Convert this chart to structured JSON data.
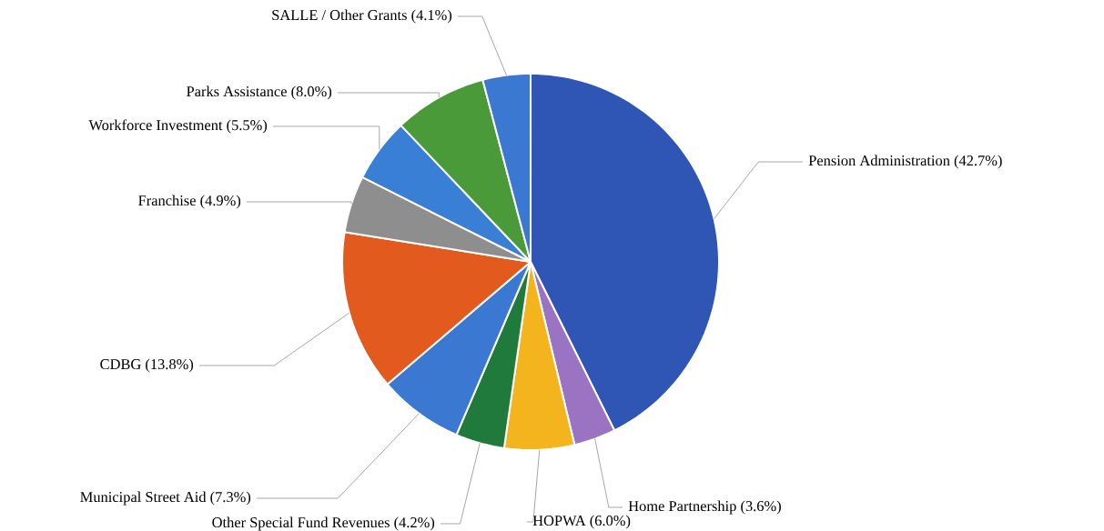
{
  "chart_data": {
    "type": "pie",
    "categories": [
      "Pension Administration",
      "Home Partnership",
      "HOPWA",
      "Other Special Fund Revenues",
      "Municipal Street Aid",
      "CDBG",
      "Franchise",
      "Workforce Investment",
      "Parks Assistance",
      "SALLE / Other Grants"
    ],
    "values": [
      42.7,
      3.6,
      6.0,
      4.2,
      7.3,
      13.8,
      4.9,
      5.5,
      8.0,
      4.1
    ],
    "value_labels": [
      "(42.7%)",
      "(3.6%)",
      "(6.0%)",
      "(4.2%)",
      "(7.3%)",
      "(13.8%)",
      "(4.9%)",
      "(5.5%)",
      "(8.0%)",
      "(4.1%)"
    ],
    "colors": [
      "#2f55b5",
      "#9a74c2",
      "#f4b41e",
      "#1f7a3c",
      "#3b78d2",
      "#e35a1e",
      "#8e8e8e",
      "#3a7fd6",
      "#4b9a3a",
      "#3a78d2"
    ]
  }
}
